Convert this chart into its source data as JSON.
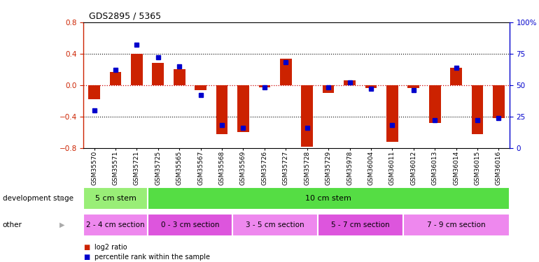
{
  "title": "GDS2895 / 5365",
  "samples": [
    "GSM35570",
    "GSM35571",
    "GSM35721",
    "GSM35725",
    "GSM35565",
    "GSM35567",
    "GSM35568",
    "GSM35569",
    "GSM35726",
    "GSM35727",
    "GSM35728",
    "GSM35729",
    "GSM35978",
    "GSM36004",
    "GSM36011",
    "GSM36012",
    "GSM36013",
    "GSM36014",
    "GSM36015",
    "GSM36016"
  ],
  "log2_ratio": [
    -0.18,
    0.17,
    0.4,
    0.28,
    0.2,
    -0.06,
    -0.62,
    -0.6,
    -0.03,
    0.34,
    -0.78,
    -0.1,
    0.06,
    -0.04,
    -0.72,
    -0.04,
    -0.48,
    0.22,
    -0.62,
    -0.42
  ],
  "percentile": [
    30,
    62,
    82,
    72,
    65,
    42,
    18,
    16,
    48,
    68,
    16,
    48,
    52,
    47,
    18,
    46,
    22,
    64,
    22,
    24
  ],
  "ylim": [
    -0.8,
    0.8
  ],
  "yticks_left": [
    -0.8,
    -0.4,
    0.0,
    0.4,
    0.8
  ],
  "yticks_right": [
    0,
    25,
    50,
    75,
    100
  ],
  "bar_color": "#cc2200",
  "dot_color": "#0000cc",
  "zero_line_color": "#cc0000",
  "dev_stage_label": "development stage",
  "other_label": "other",
  "dev_stages": [
    {
      "label": "5 cm stem",
      "start": 0,
      "end": 3,
      "color": "#99ee77"
    },
    {
      "label": "10 cm stem",
      "start": 3,
      "end": 20,
      "color": "#55dd44"
    }
  ],
  "other_stages": [
    {
      "label": "2 - 4 cm section",
      "start": 0,
      "end": 3,
      "color": "#ee88ee"
    },
    {
      "label": "0 - 3 cm section",
      "start": 3,
      "end": 7,
      "color": "#dd55dd"
    },
    {
      "label": "3 - 5 cm section",
      "start": 7,
      "end": 11,
      "color": "#ee88ee"
    },
    {
      "label": "5 - 7 cm section",
      "start": 11,
      "end": 15,
      "color": "#dd55dd"
    },
    {
      "label": "7 - 9 cm section",
      "start": 15,
      "end": 20,
      "color": "#ee88ee"
    }
  ],
  "legend_red": "log2 ratio",
  "legend_blue": "percentile rank within the sample"
}
